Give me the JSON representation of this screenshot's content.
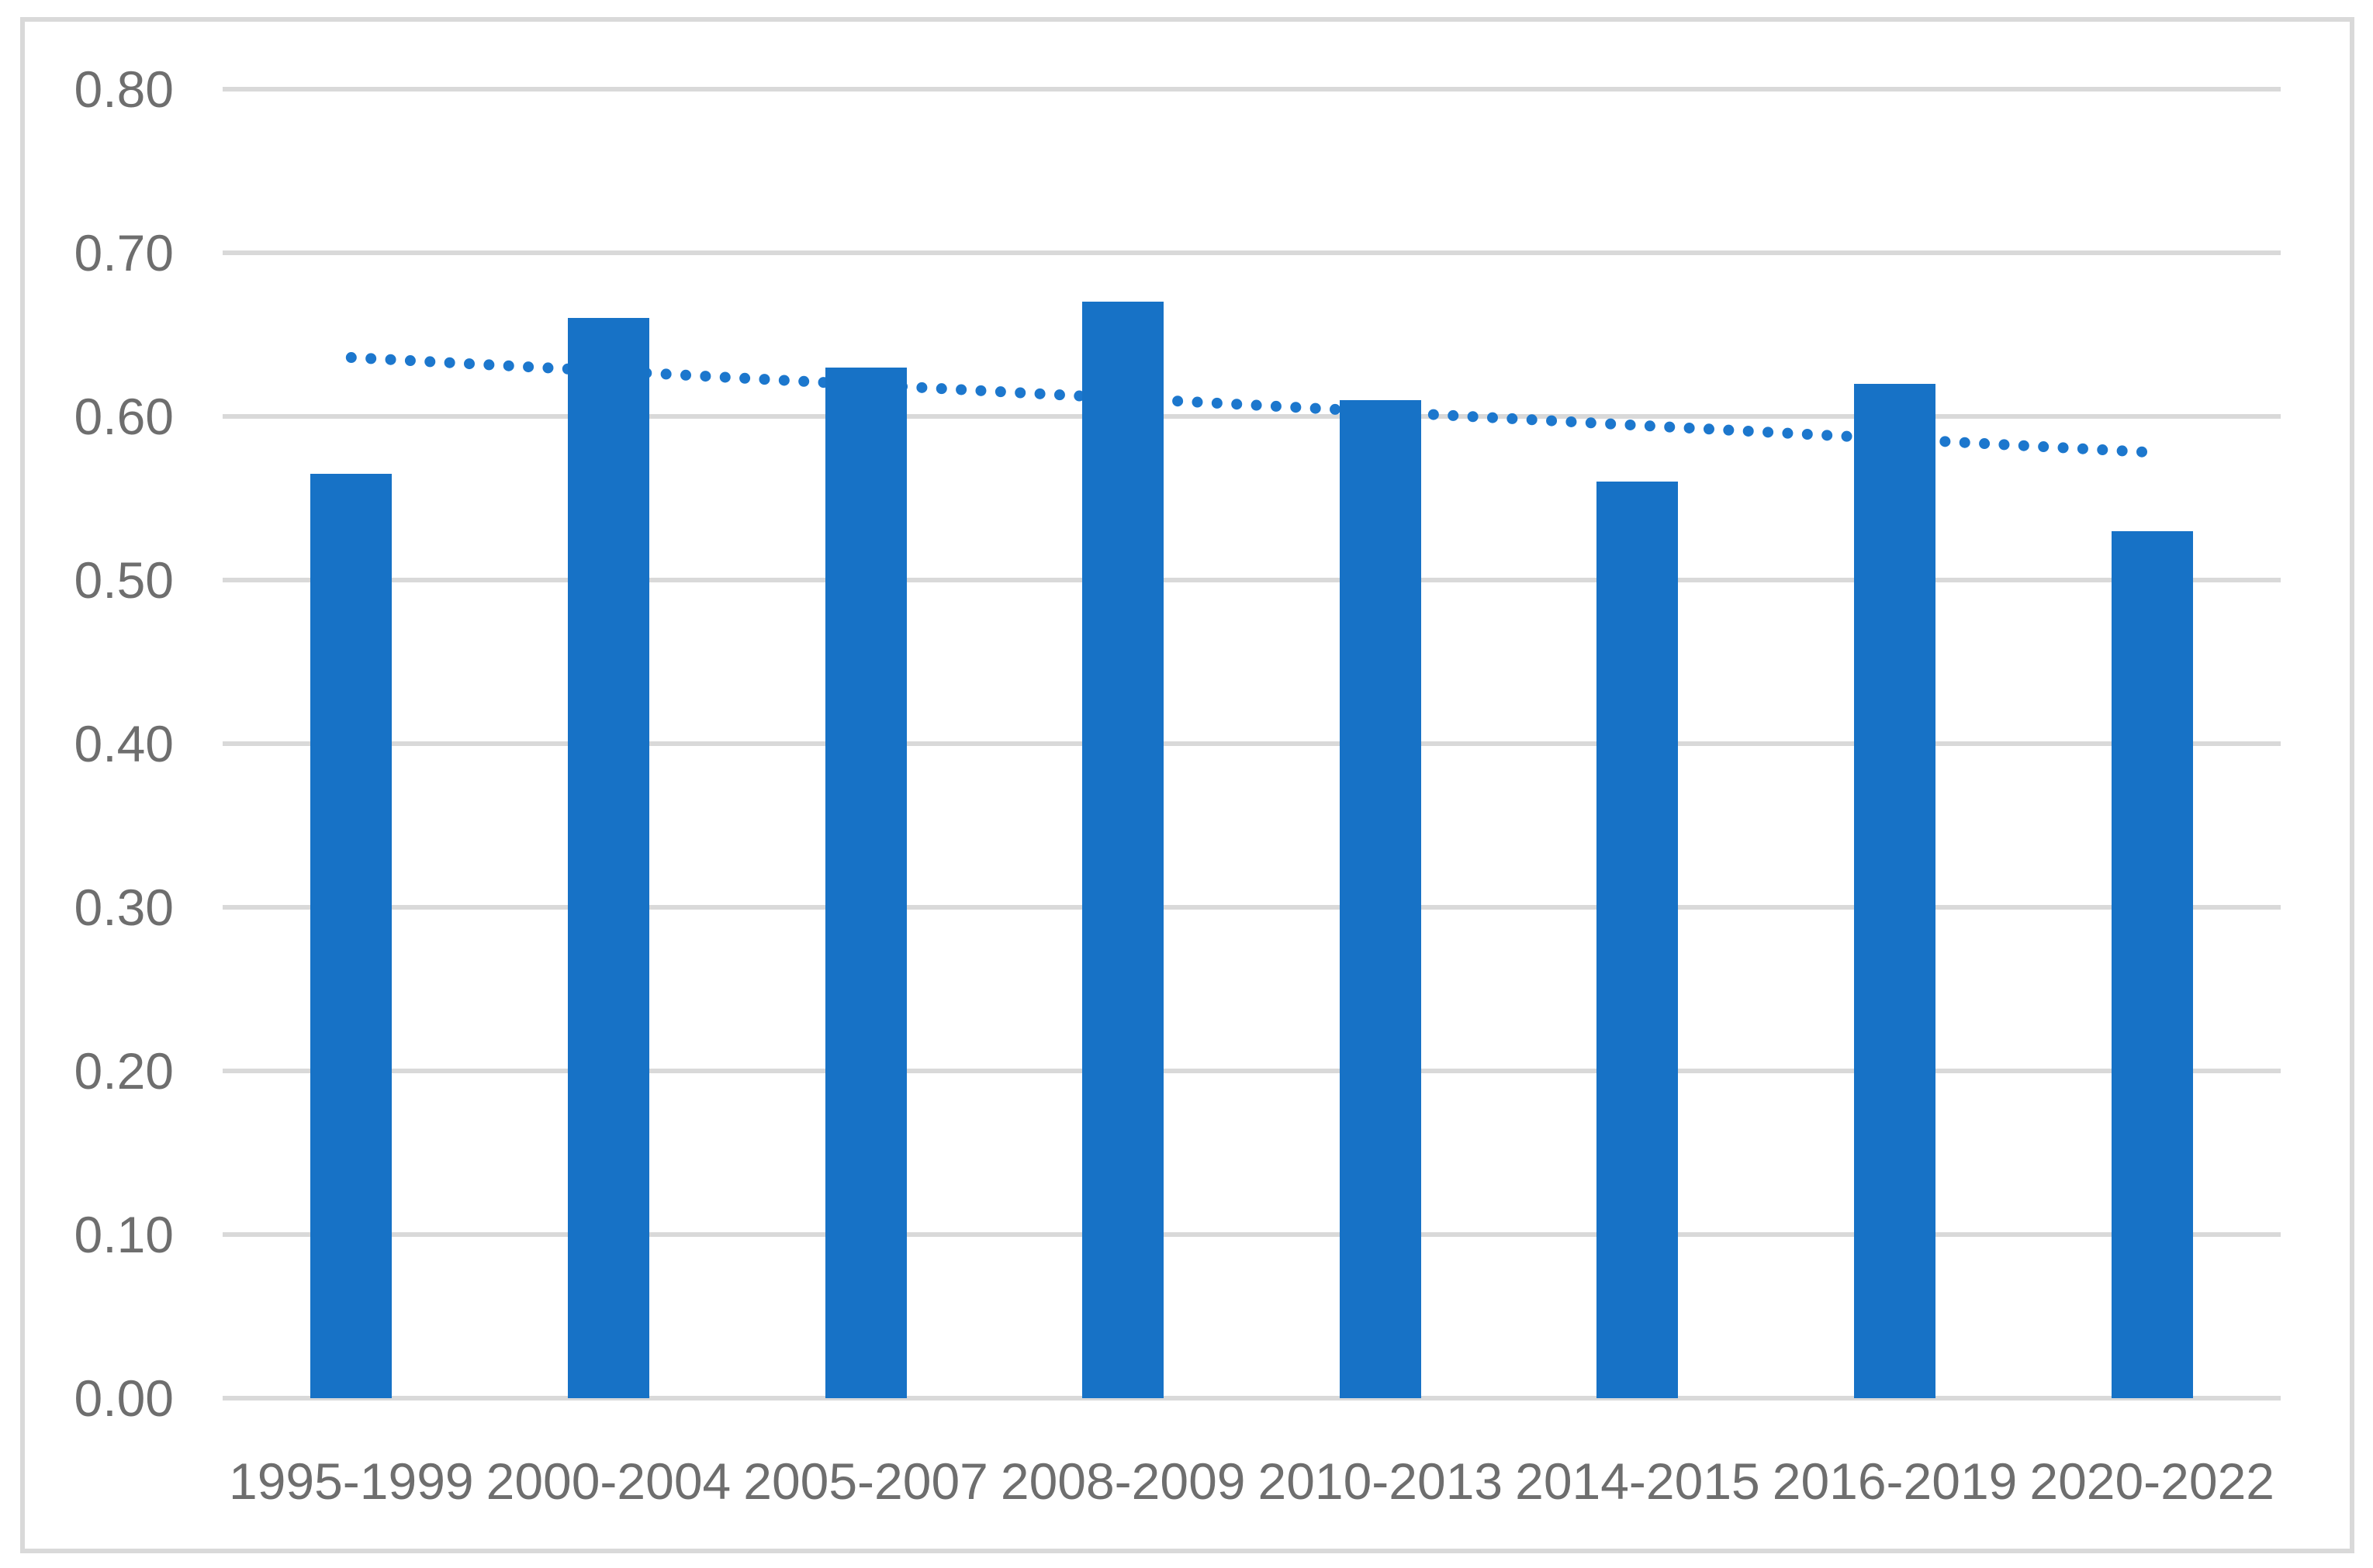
{
  "figure": {
    "background_color": "#FFFFFF",
    "border_color": "#D9D9D9"
  },
  "chart_data": {
    "type": "bar",
    "title": "",
    "xlabel": "",
    "ylabel": "",
    "categories": [
      "1995-1999",
      "2000-2004",
      "2005-2007",
      "2008-2009",
      "2010-2013",
      "2014-2015",
      "2016-2019",
      "2020-2022"
    ],
    "values": [
      0.565,
      0.66,
      0.63,
      0.67,
      0.61,
      0.56,
      0.62,
      0.53
    ],
    "series_color": "#1772C6",
    "ylim": [
      0,
      0.8
    ],
    "y_tick_labels": [
      "0.80",
      "0.70",
      "0.60",
      "0.50",
      "0.40",
      "0.30",
      "0.20",
      "0.10",
      "0.00"
    ],
    "gridlines": true,
    "gridline_color": "#D9D9D9",
    "tick_label_color": "#6E6E6E",
    "legend_position": "none",
    "trendline": {
      "type": "linear",
      "style": "dotted",
      "color": "#1C77CD",
      "start_value": 0.636,
      "end_value": 0.578
    }
  }
}
